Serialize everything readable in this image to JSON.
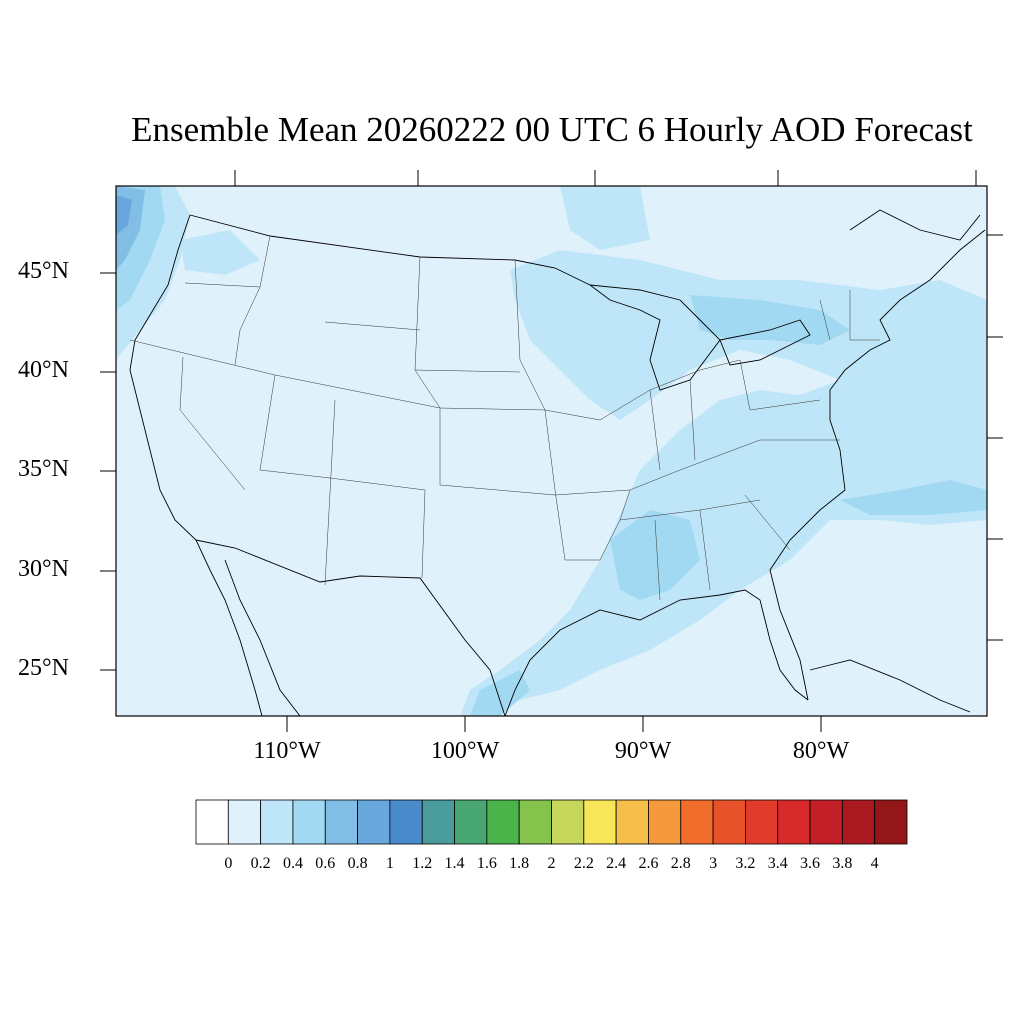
{
  "title": "Ensemble Mean 20260222 00 UTC 6 Hourly AOD Forecast",
  "latitude_labels": [
    "45°N",
    "40°N",
    "35°N",
    "30°N",
    "25°N"
  ],
  "longitude_labels": [
    "110°W",
    "100°W",
    "90°W",
    "80°W"
  ],
  "colorbar": {
    "labels": [
      "0",
      "0.2",
      "0.4",
      "0.6",
      "0.8",
      "1",
      "1.2",
      "1.4",
      "1.6",
      "1.8",
      "2",
      "2.2",
      "2.4",
      "2.6",
      "2.8",
      "3",
      "3.2",
      "3.4",
      "3.6",
      "3.8",
      "4"
    ],
    "colors": [
      "#ffffff",
      "#dff1fb",
      "#bfe6f8",
      "#a1d8f2",
      "#82bde6",
      "#68a7dc",
      "#4a8ccb",
      "#4a9b9b",
      "#48a673",
      "#4ab34a",
      "#86c34c",
      "#c6d65a",
      "#f7e65a",
      "#f6bf4a",
      "#f49a3c",
      "#f16d2c",
      "#e8522b",
      "#e13c2b",
      "#d62a2b",
      "#c21f26",
      "#a81a1f",
      "#931619"
    ]
  },
  "map_colors": {
    "background": "#dff1fb",
    "level_0_2": "#bfe6f8",
    "level_0_4": "#a1d8f2",
    "level_0_6": "#82bde6",
    "level_0_8": "#68a7dc",
    "boundary": "#000000",
    "state_lines": "#333333"
  }
}
